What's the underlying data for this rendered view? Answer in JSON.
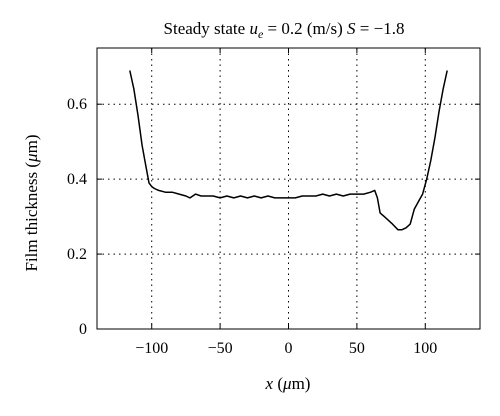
{
  "chart_data": {
    "type": "line",
    "title": {
      "prefix": "Steady state ",
      "var": "u",
      "sub": "e",
      "mid": " = 0.2 (m/s) ",
      "svar": "S",
      "suffix": " = −1.8"
    },
    "xlabel": {
      "var": "x",
      "rest": " (",
      "mu": "μ",
      "unit": "m)"
    },
    "ylabel": {
      "text": "Film thickness (",
      "mu": "μ",
      "unit": "m)"
    },
    "xlim": [
      -140,
      140
    ],
    "ylim": [
      0,
      0.75
    ],
    "xticks": [
      -100,
      -50,
      0,
      50,
      100
    ],
    "xtick_labels": [
      "−100",
      "−50",
      "0",
      "50",
      "100"
    ],
    "yticks": [
      0,
      0.2,
      0.4,
      0.6
    ],
    "ytick_labels": [
      "0",
      "0.2",
      "0.4",
      "0.6"
    ],
    "grid": true,
    "series": [
      {
        "x": [
          -116,
          -113,
          -110,
          -107,
          -104,
          -102,
          -100,
          -98,
          -95,
          -90,
          -85,
          -80,
          -75,
          -72,
          -68,
          -64,
          -60,
          -55,
          -50,
          -45,
          -40,
          -35,
          -30,
          -25,
          -20,
          -15,
          -10,
          -5,
          0,
          5,
          10,
          15,
          20,
          25,
          30,
          35,
          40,
          45,
          50,
          55,
          60,
          63,
          65,
          67,
          70,
          73,
          76,
          80,
          83,
          86,
          89,
          92,
          95,
          98,
          101,
          104,
          107,
          110,
          113,
          116
        ],
        "y": [
          0.69,
          0.64,
          0.57,
          0.49,
          0.43,
          0.39,
          0.38,
          0.375,
          0.37,
          0.365,
          0.365,
          0.36,
          0.355,
          0.35,
          0.36,
          0.355,
          0.355,
          0.355,
          0.35,
          0.355,
          0.35,
          0.355,
          0.35,
          0.355,
          0.35,
          0.355,
          0.35,
          0.35,
          0.35,
          0.35,
          0.355,
          0.355,
          0.355,
          0.36,
          0.355,
          0.36,
          0.355,
          0.36,
          0.36,
          0.36,
          0.365,
          0.37,
          0.35,
          0.31,
          0.3,
          0.29,
          0.28,
          0.265,
          0.265,
          0.27,
          0.28,
          0.32,
          0.34,
          0.36,
          0.4,
          0.45,
          0.51,
          0.58,
          0.64,
          0.69
        ]
      }
    ]
  }
}
